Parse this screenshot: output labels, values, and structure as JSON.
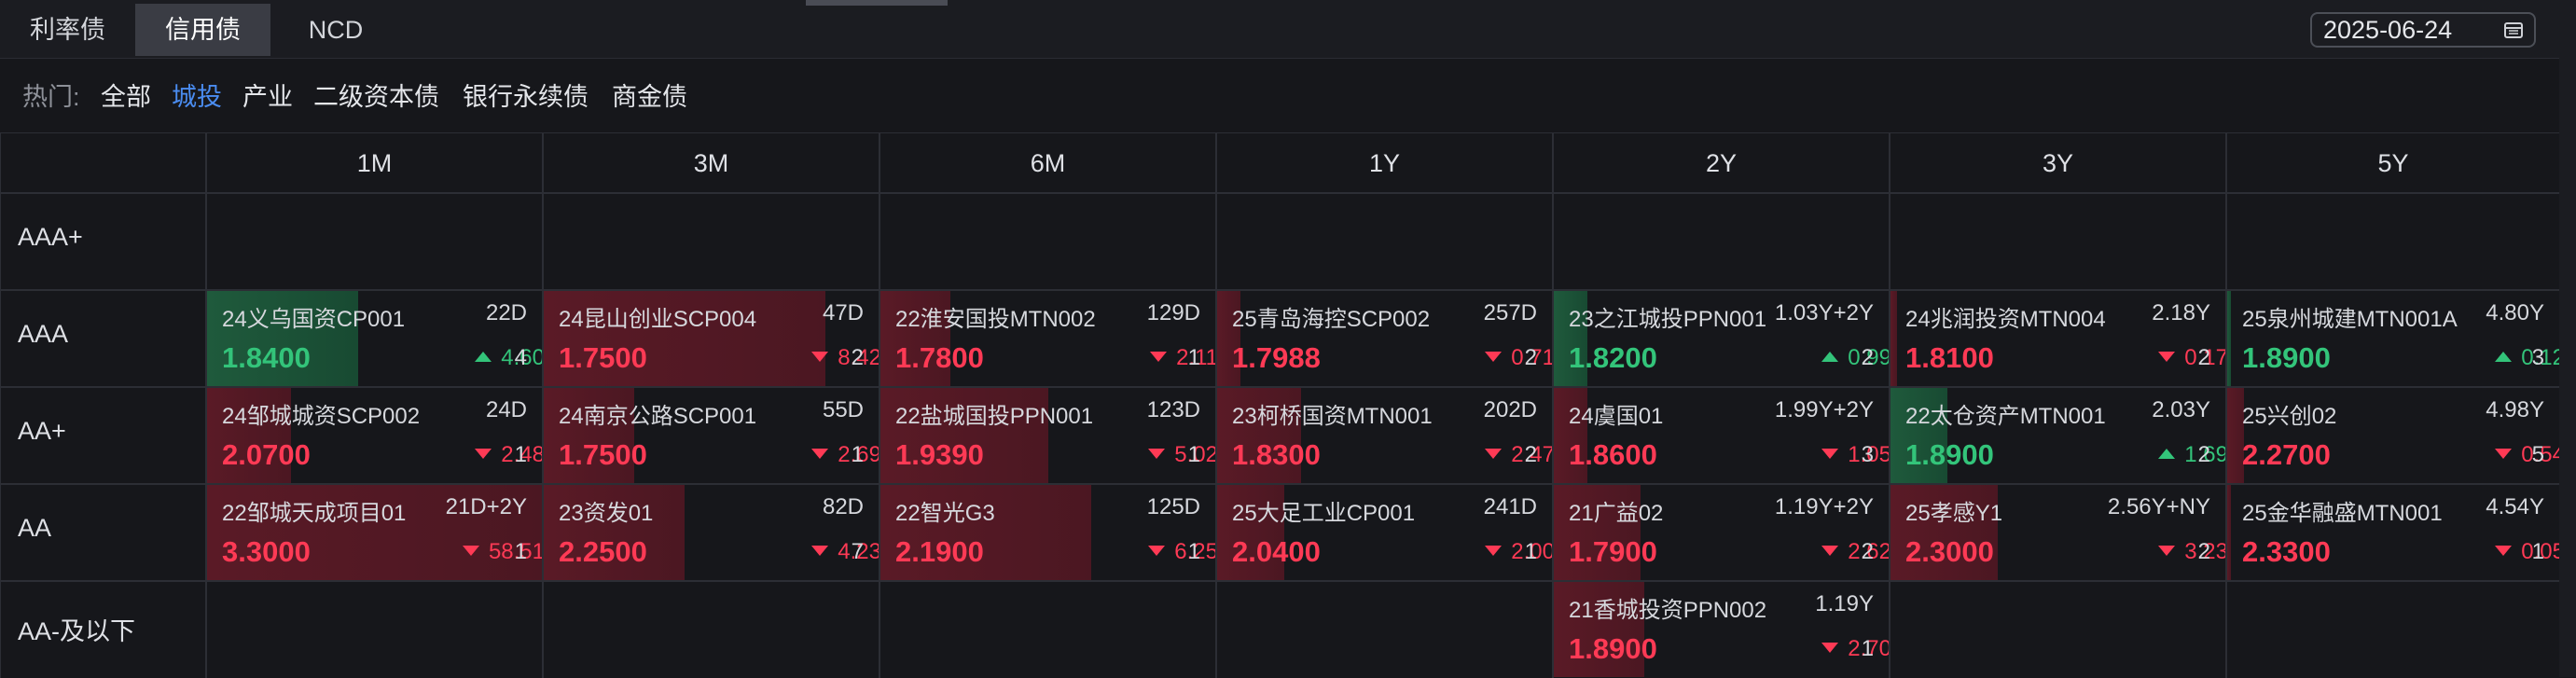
{
  "tabs": [
    "利率债",
    "信用债",
    "NCD"
  ],
  "active_tab": 1,
  "date": "2025-06-24",
  "filter": {
    "label": "热门:",
    "chips": [
      "全部",
      "城投",
      "产业",
      "二级资本债",
      "银行永续债",
      "商金债"
    ],
    "active": 1
  },
  "columns": [
    "1M",
    "3M",
    "6M",
    "1Y",
    "2Y",
    "3Y",
    "5Y"
  ],
  "rows": [
    "AAA+",
    "AAA",
    "AA+",
    "AA",
    "AA-及以下"
  ],
  "colors": {
    "up": "#33c47a",
    "down": "#ff3a55",
    "active_tab_bg": "#3a3c44",
    "chip_active": "#4a8cf0"
  },
  "cells": [
    {
      "row": 1,
      "col": 0,
      "name": "24义乌国资CP001",
      "term": "22D",
      "yield": "1.8400",
      "dir": "up",
      "change": "4.60",
      "count": "4",
      "strength": 0.45
    },
    {
      "row": 1,
      "col": 1,
      "name": "24昆山创业SCP004",
      "term": "47D",
      "yield": "1.7500",
      "dir": "down",
      "change": "8.42",
      "count": "2",
      "strength": 0.84
    },
    {
      "row": 1,
      "col": 2,
      "name": "22淮安国投MTN002",
      "term": "129D",
      "yield": "1.7800",
      "dir": "down",
      "change": "2.11",
      "count": "1",
      "strength": 0.21
    },
    {
      "row": 1,
      "col": 3,
      "name": "25青岛海控SCP002",
      "term": "257D",
      "yield": "1.7988",
      "dir": "down",
      "change": "0.71",
      "count": "2",
      "strength": 0.07
    },
    {
      "row": 1,
      "col": 4,
      "name": "23之江城投PPN001",
      "term": "1.03Y+2Y",
      "yield": "1.8200",
      "dir": "up",
      "change": "0.99",
      "count": "2",
      "strength": 0.1
    },
    {
      "row": 1,
      "col": 5,
      "name": "24兆润投资MTN004",
      "term": "2.18Y",
      "yield": "1.8100",
      "dir": "down",
      "change": "0.17",
      "count": "2",
      "strength": 0.02
    },
    {
      "row": 1,
      "col": 6,
      "name": "25泉州城建MTN001A",
      "term": "4.80Y",
      "yield": "1.8900",
      "dir": "up",
      "change": "0.12",
      "count": "3",
      "strength": 0.01
    },
    {
      "row": 2,
      "col": 0,
      "name": "24邹城城资SCP002",
      "term": "24D",
      "yield": "2.0700",
      "dir": "down",
      "change": "2.48",
      "count": "1",
      "strength": 0.25
    },
    {
      "row": 2,
      "col": 1,
      "name": "24南京公路SCP001",
      "term": "55D",
      "yield": "1.7500",
      "dir": "down",
      "change": "2.69",
      "count": "1",
      "strength": 0.27
    },
    {
      "row": 2,
      "col": 2,
      "name": "22盐城国投PPN001",
      "term": "123D",
      "yield": "1.9390",
      "dir": "down",
      "change": "5.02",
      "count": "1",
      "strength": 0.5
    },
    {
      "row": 2,
      "col": 3,
      "name": "23柯桥国资MTN001",
      "term": "202D",
      "yield": "1.8300",
      "dir": "down",
      "change": "2.47",
      "count": "2",
      "strength": 0.25
    },
    {
      "row": 2,
      "col": 4,
      "name": "24虞国01",
      "term": "1.99Y+2Y",
      "yield": "1.8600",
      "dir": "down",
      "change": "1.05",
      "count": "3",
      "strength": 0.1
    },
    {
      "row": 2,
      "col": 5,
      "name": "22太仓资产MTN001",
      "term": "2.03Y",
      "yield": "1.8900",
      "dir": "up",
      "change": "1.69",
      "count": "2",
      "strength": 0.17
    },
    {
      "row": 2,
      "col": 6,
      "name": "25兴创02",
      "term": "4.98Y",
      "yield": "2.2700",
      "dir": "down",
      "change": "0.54",
      "count": "5",
      "strength": 0.05
    },
    {
      "row": 3,
      "col": 0,
      "name": "22邹城天成项目01",
      "term": "21D+2Y",
      "yield": "3.3000",
      "dir": "down",
      "change": "58.51",
      "count": "1",
      "strength": 1.0
    },
    {
      "row": 3,
      "col": 1,
      "name": "23资发01",
      "term": "82D",
      "yield": "2.2500",
      "dir": "down",
      "change": "4.23",
      "count": "7",
      "strength": 0.42
    },
    {
      "row": 3,
      "col": 2,
      "name": "22智光G3",
      "term": "125D",
      "yield": "2.1900",
      "dir": "down",
      "change": "6.25",
      "count": "1",
      "strength": 0.63
    },
    {
      "row": 3,
      "col": 3,
      "name": "25大足工业CP001",
      "term": "241D",
      "yield": "2.0400",
      "dir": "down",
      "change": "2.00",
      "count": "1",
      "strength": 0.2
    },
    {
      "row": 3,
      "col": 4,
      "name": "21广益02",
      "term": "1.19Y+2Y",
      "yield": "1.7900",
      "dir": "down",
      "change": "2.62",
      "count": "2",
      "strength": 0.26
    },
    {
      "row": 3,
      "col": 5,
      "name": "25孝感Y1",
      "term": "2.56Y+NY",
      "yield": "2.3000",
      "dir": "down",
      "change": "3.23",
      "count": "2",
      "strength": 0.32
    },
    {
      "row": 3,
      "col": 6,
      "name": "25金华融盛MTN001",
      "term": "4.54Y",
      "yield": "2.3300",
      "dir": "down",
      "change": "0.05",
      "count": "1",
      "strength": 0.01
    },
    {
      "row": 4,
      "col": 4,
      "name": "21香城投资PPN002",
      "term": "1.19Y",
      "yield": "1.8900",
      "dir": "down",
      "change": "2.70",
      "count": "1",
      "strength": 0.27
    }
  ]
}
